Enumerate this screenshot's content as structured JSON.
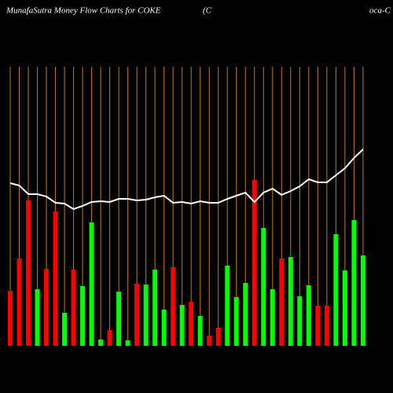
{
  "chart_data": {
    "type": "bar-line",
    "title": "MunafaSutra  Money Flow  Charts for COKE",
    "title_fragments": [
      "(C",
      "oca-C"
    ],
    "categories": [
      null,
      null,
      null,
      null,
      null,
      null,
      null,
      null,
      null,
      null,
      null,
      null,
      null,
      null,
      null,
      null,
      null,
      null,
      null,
      null,
      null,
      null,
      null,
      null,
      null,
      null,
      null,
      null,
      null,
      null,
      null,
      null,
      null,
      null,
      null,
      null,
      null,
      null,
      null,
      null
    ],
    "ylim": [
      0,
      360
    ],
    "vertical_grid": true,
    "grid_color": "#cc7a00",
    "series": [
      {
        "type": "bar",
        "values": [
          70,
          111,
          185,
          72,
          98,
          171,
          42,
          97,
          76,
          157,
          8,
          20,
          69,
          7,
          79,
          78,
          97,
          46,
          100,
          52,
          56,
          38,
          13,
          23,
          102,
          62,
          80,
          211,
          150,
          72,
          111,
          113,
          63,
          77,
          51,
          51,
          142,
          96,
          160,
          115
        ],
        "colors": [
          "#ff0000",
          "#ff0000",
          "#ff0000",
          "#00ff00",
          "#ff0000",
          "#ff0000",
          "#00ff00",
          "#ff0000",
          "#00ff00",
          "#00ff00",
          "#00ff00",
          "#ff0000",
          "#00ff00",
          "#00ff00",
          "#ff0000",
          "#00ff00",
          "#00ff00",
          "#00ff00",
          "#ff0000",
          "#00ff00",
          "#ff0000",
          "#00ff00",
          "#ff0000",
          "#ff0000",
          "#00ff00",
          "#00ff00",
          "#00ff00",
          "#ff0000",
          "#00ff00",
          "#00ff00",
          "#ff0000",
          "#00ff00",
          "#00ff00",
          "#00ff00",
          "#ff0000",
          "#ff0000",
          "#00ff00",
          "#00ff00",
          "#00ff00",
          "#00ff00"
        ]
      },
      {
        "type": "line",
        "color": "#ffffff",
        "values": [
          207,
          204,
          193,
          193,
          190,
          182,
          181,
          174,
          178,
          183,
          184,
          183,
          187,
          187,
          185,
          186,
          189,
          191,
          182,
          183,
          181,
          184,
          182,
          182,
          187,
          191,
          195,
          183,
          195,
          200,
          192,
          197,
          203,
          212,
          208,
          208,
          217,
          226,
          239,
          250
        ]
      }
    ]
  }
}
